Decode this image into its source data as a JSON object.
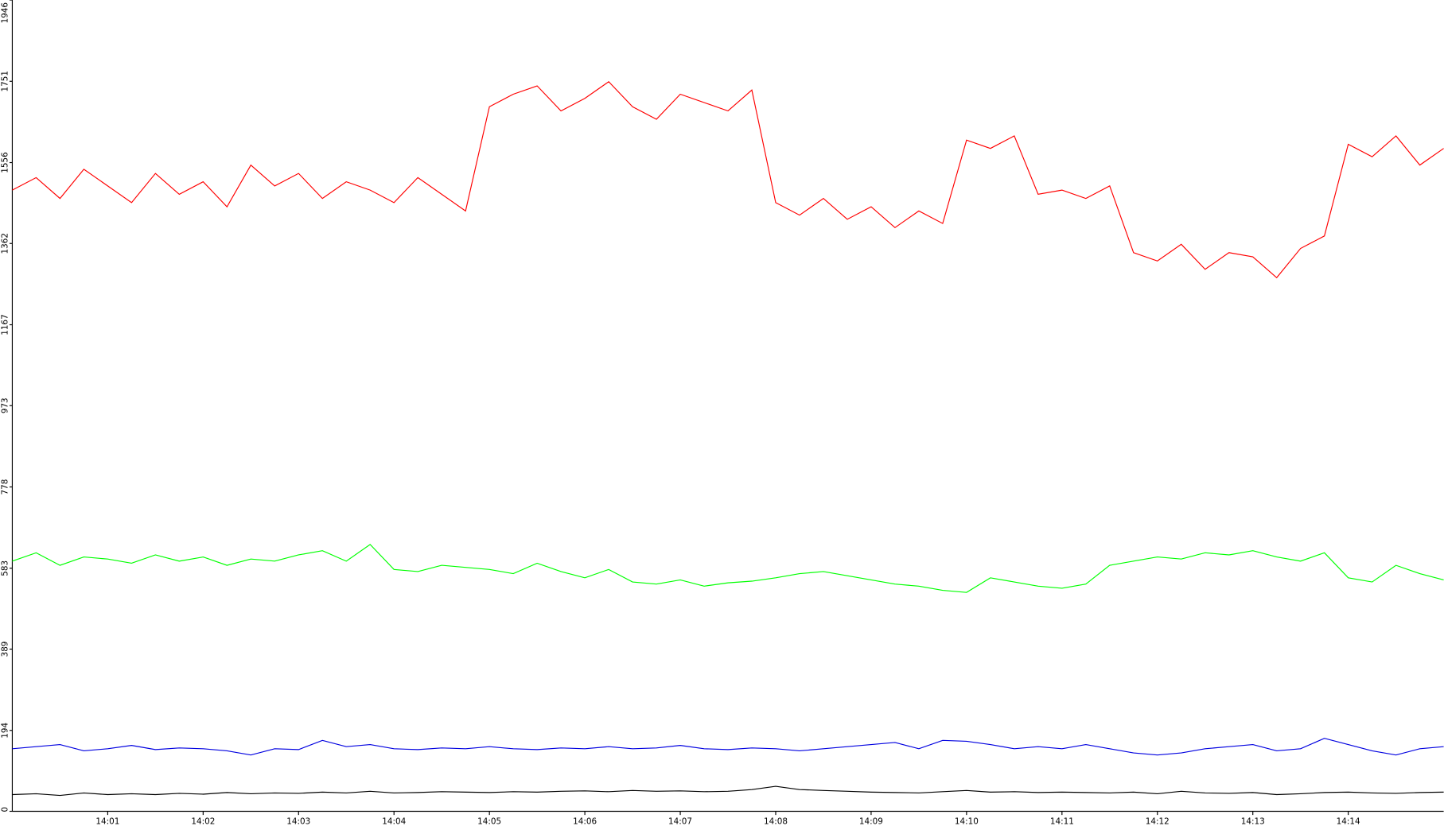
{
  "chart_data": {
    "type": "line",
    "x": [
      0,
      0.25,
      0.5,
      0.75,
      1,
      1.25,
      1.5,
      1.75,
      2,
      2.25,
      2.5,
      2.75,
      3,
      3.25,
      3.5,
      3.75,
      4,
      4.25,
      4.5,
      4.75,
      5,
      5.25,
      5.5,
      5.75,
      6,
      6.25,
      6.5,
      6.75,
      7,
      7.25,
      7.5,
      7.75,
      8,
      8.25,
      8.5,
      8.75,
      9,
      9.25,
      9.5,
      9.75,
      10,
      10.25,
      10.5,
      10.75,
      11,
      11.25,
      11.5,
      11.75,
      12,
      12.25,
      12.5,
      12.75,
      13,
      13.25,
      13.5,
      13.75,
      14,
      14.25,
      14.5,
      14.75,
      15
    ],
    "series": [
      {
        "color": "#ff0000",
        "values": [
          1490,
          1520,
          1470,
          1540,
          1500,
          1460,
          1530,
          1480,
          1510,
          1450,
          1550,
          1500,
          1530,
          1470,
          1510,
          1490,
          1460,
          1520,
          1480,
          1440,
          1690,
          1720,
          1740,
          1680,
          1710,
          1750,
          1690,
          1660,
          1720,
          1700,
          1680,
          1730,
          1460,
          1430,
          1470,
          1420,
          1450,
          1400,
          1440,
          1410,
          1610,
          1590,
          1620,
          1480,
          1490,
          1470,
          1500,
          1340,
          1320,
          1360,
          1300,
          1340,
          1330,
          1280,
          1350,
          1380,
          1600,
          1570,
          1620,
          1550,
          1590
        ]
      },
      {
        "color": "#00ff00",
        "values": [
          600,
          620,
          590,
          610,
          605,
          595,
          615,
          600,
          610,
          590,
          605,
          600,
          615,
          625,
          600,
          640,
          580,
          575,
          590,
          585,
          580,
          570,
          595,
          575,
          560,
          580,
          550,
          545,
          555,
          540,
          548,
          552,
          560,
          570,
          575,
          565,
          555,
          545,
          540,
          530,
          525,
          560,
          550,
          540,
          535,
          545,
          590,
          600,
          610,
          605,
          620,
          615,
          625,
          610,
          600,
          620,
          560,
          550,
          590,
          570,
          555
        ]
      },
      {
        "color": "#0000e0",
        "values": [
          150,
          155,
          160,
          145,
          150,
          158,
          148,
          152,
          150,
          145,
          135,
          150,
          148,
          170,
          155,
          160,
          150,
          148,
          152,
          150,
          155,
          150,
          148,
          152,
          150,
          155,
          150,
          152,
          158,
          150,
          148,
          152,
          150,
          145,
          150,
          155,
          160,
          165,
          150,
          170,
          168,
          160,
          150,
          155,
          150,
          160,
          150,
          140,
          135,
          140,
          150,
          155,
          160,
          145,
          150,
          175,
          160,
          145,
          135,
          150,
          155
        ]
      },
      {
        "color": "#000000",
        "values": [
          40,
          42,
          38,
          44,
          40,
          42,
          40,
          43,
          41,
          45,
          42,
          44,
          43,
          46,
          44,
          48,
          44,
          45,
          47,
          46,
          45,
          47,
          46,
          48,
          49,
          47,
          50,
          48,
          49,
          47,
          48,
          52,
          60,
          52,
          50,
          48,
          46,
          45,
          44,
          47,
          50,
          46,
          47,
          45,
          46,
          45,
          44,
          46,
          42,
          48,
          44,
          43,
          45,
          40,
          42,
          45,
          46,
          44,
          43,
          45,
          46
        ]
      }
    ],
    "xlim": [
      0,
      15
    ],
    "xticks": [
      {
        "value": 1,
        "label": "14:01"
      },
      {
        "value": 2,
        "label": "14:02"
      },
      {
        "value": 3,
        "label": "14:03"
      },
      {
        "value": 4,
        "label": "14:04"
      },
      {
        "value": 5,
        "label": "14:05"
      },
      {
        "value": 6,
        "label": "14:06"
      },
      {
        "value": 7,
        "label": "14:07"
      },
      {
        "value": 8,
        "label": "14:08"
      },
      {
        "value": 9,
        "label": "14:09"
      },
      {
        "value": 10,
        "label": "14:10"
      },
      {
        "value": 11,
        "label": "14:11"
      },
      {
        "value": 12,
        "label": "14:12"
      },
      {
        "value": 13,
        "label": "14:13"
      },
      {
        "value": 14,
        "label": "14:14"
      }
    ],
    "ylim": [
      0,
      1946
    ],
    "yticks": [
      0,
      194,
      389,
      583,
      778,
      973,
      1167,
      1362,
      1556,
      1751,
      1946
    ]
  }
}
